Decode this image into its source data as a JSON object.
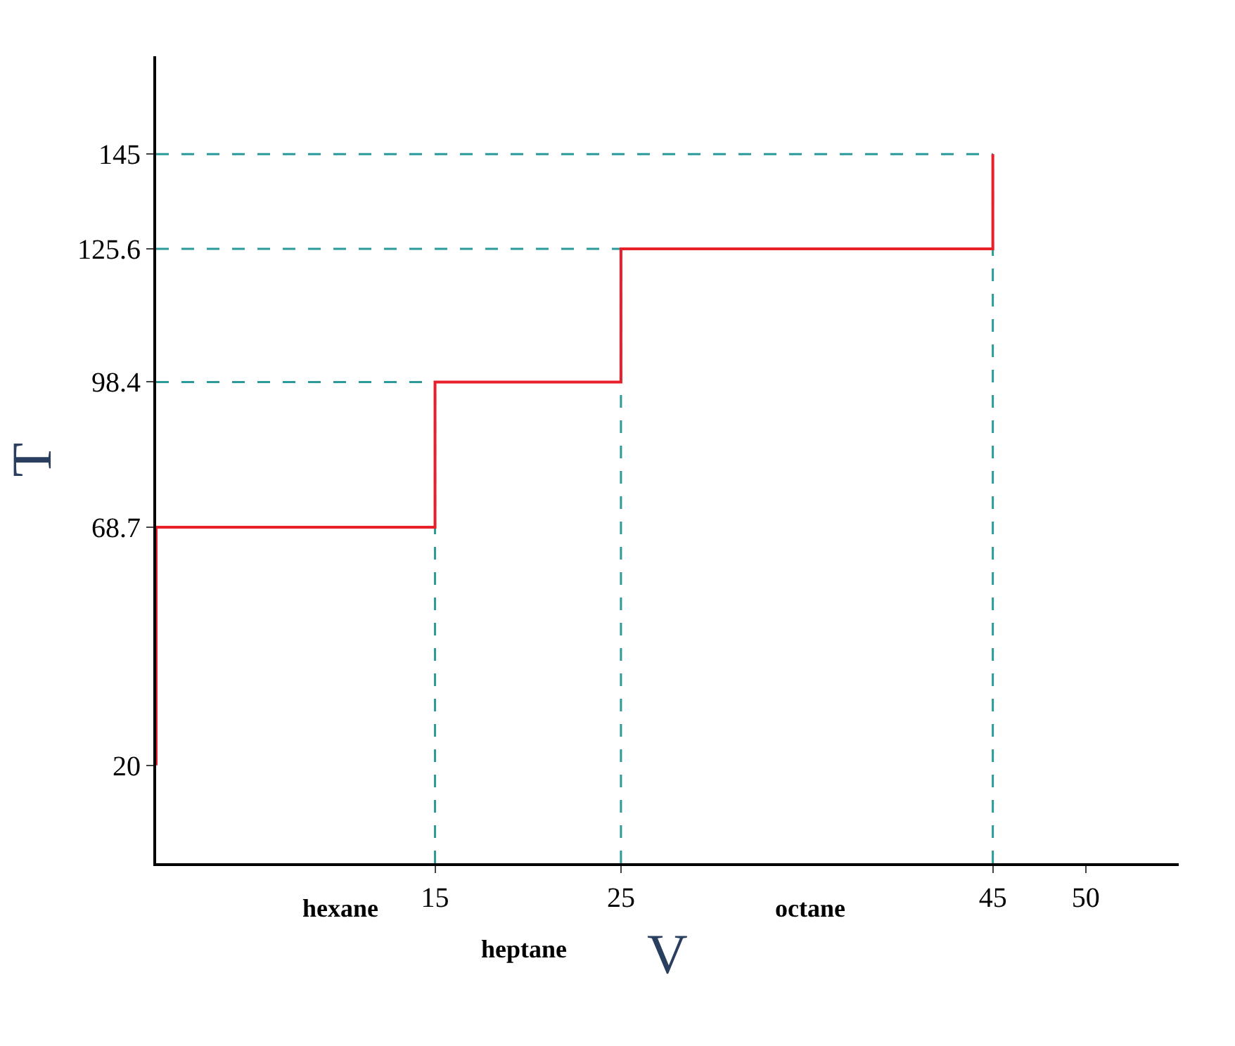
{
  "chart_data": {
    "type": "line",
    "xlabel": "V",
    "ylabel": "T",
    "series": [
      {
        "color": "#e8202a",
        "x": [
          0,
          0,
          15,
          15,
          25,
          25,
          45,
          45
        ],
        "values": [
          20,
          68.7,
          68.7,
          98.4,
          98.4,
          125.6,
          125.6,
          145
        ]
      }
    ],
    "xlim": [
      0,
      55
    ],
    "ylim": [
      0,
      165
    ],
    "xticks": [
      15,
      25,
      45,
      50
    ],
    "yticks": [
      20,
      68.7,
      98.4,
      125.6,
      145
    ],
    "ref_lines": [
      {
        "axis": "y",
        "value": 145,
        "color": "#2a9a9a",
        "line_style": "dashed"
      },
      {
        "axis": "y",
        "value": 125.6,
        "color": "#2a9a9a",
        "line_style": "dashed"
      },
      {
        "axis": "y",
        "value": 98.4,
        "color": "#2a9a9a",
        "line_style": "dashed"
      },
      {
        "axis": "x",
        "value": 15,
        "color": "#2a9a9a",
        "line_style": "dashed"
      },
      {
        "axis": "x",
        "value": 25,
        "color": "#2a9a9a",
        "line_style": "dashed"
      },
      {
        "axis": "x",
        "value": 45,
        "color": "#2a9a9a",
        "line_style": "dashed"
      }
    ],
    "annotations": [
      "hexane",
      "heptane",
      "octane"
    ],
    "grid": false,
    "marker": "none",
    "line_style": "solid"
  }
}
